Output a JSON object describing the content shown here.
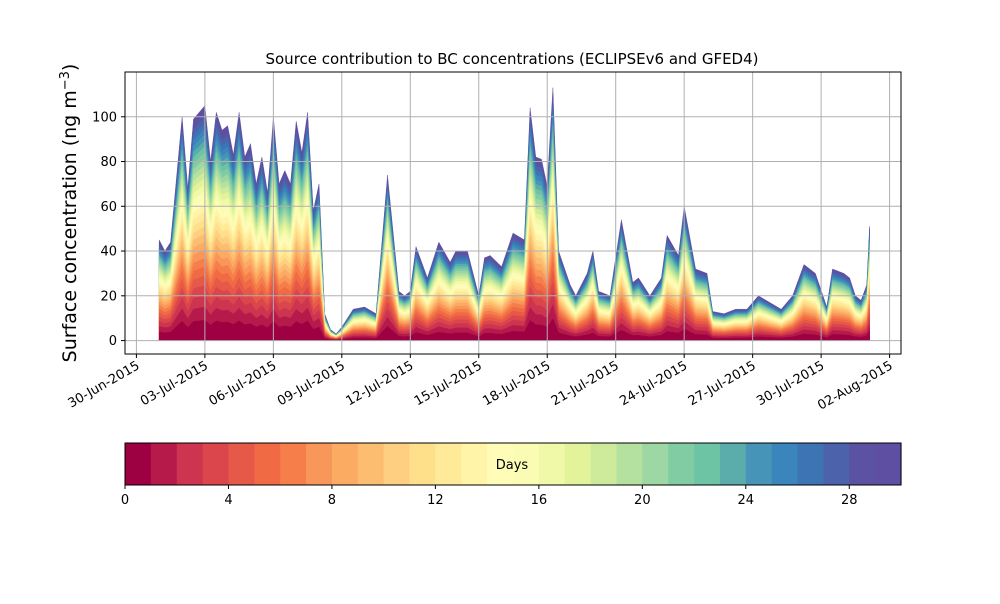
{
  "chart_data": {
    "type": "area",
    "title": "Source contribution to BC concentrations (ECLIPSEv6 and GFED4)",
    "ylabel_main": "Surface concentration (ng m",
    "ylabel_sup": "−3",
    "ylabel_close": ")",
    "xlabel": "",
    "ylim": [
      -6,
      120
    ],
    "yticks": [
      0,
      20,
      40,
      60,
      80,
      100
    ],
    "grid": true,
    "x_axis": {
      "start": "2015-06-29T12:00",
      "end": "2015-08-02T12:00",
      "tick_dates": [
        "2015-06-30",
        "2015-07-03",
        "2015-07-06",
        "2015-07-09",
        "2015-07-12",
        "2015-07-15",
        "2015-07-18",
        "2015-07-21",
        "2015-07-24",
        "2015-07-27",
        "2015-07-30",
        "2015-08-02"
      ],
      "tick_labels": [
        "30-Jun-2015",
        "03-Jul-2015",
        "06-Jul-2015",
        "09-Jul-2015",
        "12-Jul-2015",
        "15-Jul-2015",
        "18-Jul-2015",
        "21-Jul-2015",
        "24-Jul-2015",
        "27-Jul-2015",
        "30-Jul-2015",
        "02-Aug-2015"
      ]
    },
    "series_total": {
      "dates": [
        "2015-07-01T00:00",
        "2015-07-01T06:00",
        "2015-07-01T12:00",
        "2015-07-02T00:00",
        "2015-07-02T06:00",
        "2015-07-02T12:00",
        "2015-07-03T00:00",
        "2015-07-03T06:00",
        "2015-07-03T12:00",
        "2015-07-03T18:00",
        "2015-07-04T00:00",
        "2015-07-04T06:00",
        "2015-07-04T12:00",
        "2015-07-04T18:00",
        "2015-07-05T00:00",
        "2015-07-05T06:00",
        "2015-07-05T12:00",
        "2015-07-05T18:00",
        "2015-07-06T00:00",
        "2015-07-06T06:00",
        "2015-07-06T12:00",
        "2015-07-06T18:00",
        "2015-07-07T00:00",
        "2015-07-07T06:00",
        "2015-07-07T12:00",
        "2015-07-07T18:00",
        "2015-07-08T00:00",
        "2015-07-08T06:00",
        "2015-07-08T12:00",
        "2015-07-08T18:00",
        "2015-07-09T00:00",
        "2015-07-09T06:00",
        "2015-07-09T12:00",
        "2015-07-10T00:00",
        "2015-07-10T12:00",
        "2015-07-11T00:00",
        "2015-07-11T12:00",
        "2015-07-11T18:00",
        "2015-07-12T00:00",
        "2015-07-12T06:00",
        "2015-07-12T18:00",
        "2015-07-13T06:00",
        "2015-07-13T18:00",
        "2015-07-14T00:00",
        "2015-07-14T12:00",
        "2015-07-15T00:00",
        "2015-07-15T06:00",
        "2015-07-15T12:00",
        "2015-07-16T00:00",
        "2015-07-16T12:00",
        "2015-07-17T00:00",
        "2015-07-17T06:00",
        "2015-07-17T12:00",
        "2015-07-17T18:00",
        "2015-07-18T00:00",
        "2015-07-18T06:00",
        "2015-07-18T12:00",
        "2015-07-19T00:00",
        "2015-07-19T06:00",
        "2015-07-19T18:00",
        "2015-07-20T00:00",
        "2015-07-20T06:00",
        "2015-07-20T18:00",
        "2015-07-21T06:00",
        "2015-07-21T18:00",
        "2015-07-22T00:00",
        "2015-07-22T12:00",
        "2015-07-23T00:00",
        "2015-07-23T06:00",
        "2015-07-23T18:00",
        "2015-07-24T00:00",
        "2015-07-24T12:00",
        "2015-07-25T00:00",
        "2015-07-25T06:00",
        "2015-07-25T18:00",
        "2015-07-26T06:00",
        "2015-07-26T18:00",
        "2015-07-27T06:00",
        "2015-07-27T18:00",
        "2015-07-28T06:00",
        "2015-07-28T18:00",
        "2015-07-29T06:00",
        "2015-07-29T18:00",
        "2015-07-30T06:00",
        "2015-07-30T12:00",
        "2015-07-31T00:00",
        "2015-07-31T06:00",
        "2015-07-31T12:00",
        "2015-07-31T18:00",
        "2015-08-01T00:00",
        "2015-08-01T03:00"
      ],
      "values": [
        45,
        40,
        44,
        100,
        68,
        99,
        105,
        80,
        102,
        94,
        96,
        83,
        102,
        82,
        88,
        70,
        82,
        66,
        100,
        70,
        76,
        70,
        98,
        84,
        102,
        58,
        70,
        12,
        5,
        3,
        6,
        10,
        14,
        15,
        12,
        74,
        22,
        20,
        22,
        42,
        28,
        44,
        35,
        40,
        40,
        20,
        37,
        38,
        33,
        48,
        45,
        104,
        82,
        81,
        69,
        113,
        40,
        25,
        20,
        30,
        40,
        22,
        20,
        54,
        26,
        28,
        20,
        28,
        47,
        38,
        60,
        32,
        30,
        13,
        12,
        14,
        14,
        20,
        17,
        14,
        20,
        34,
        30,
        15,
        32,
        30,
        28,
        20,
        18,
        25,
        51
      ]
    },
    "layer_exponent": 0.72,
    "colorbar": {
      "label": "Days",
      "min": 0,
      "max": 30,
      "ticks": [
        0,
        4,
        8,
        12,
        16,
        20,
        24,
        28
      ],
      "colors": [
        "#9e0142",
        "#b51a4a",
        "#cc3450",
        "#da464c",
        "#e65848",
        "#f06a44",
        "#f67e4b",
        "#f9965a",
        "#fcab63",
        "#fdbd70",
        "#fecf80",
        "#fee08b",
        "#feea98",
        "#fff4a8",
        "#fffcb8",
        "#f9fcb2",
        "#f0f9a8",
        "#e2f39a",
        "#ceeb9b",
        "#b5e1a0",
        "#9cd7a4",
        "#82cca4",
        "#6dc4a5",
        "#5aadab",
        "#4695b8",
        "#3a85bc",
        "#3d74b4",
        "#4c63ab",
        "#5b52a2",
        "#5e4fa2"
      ]
    }
  }
}
